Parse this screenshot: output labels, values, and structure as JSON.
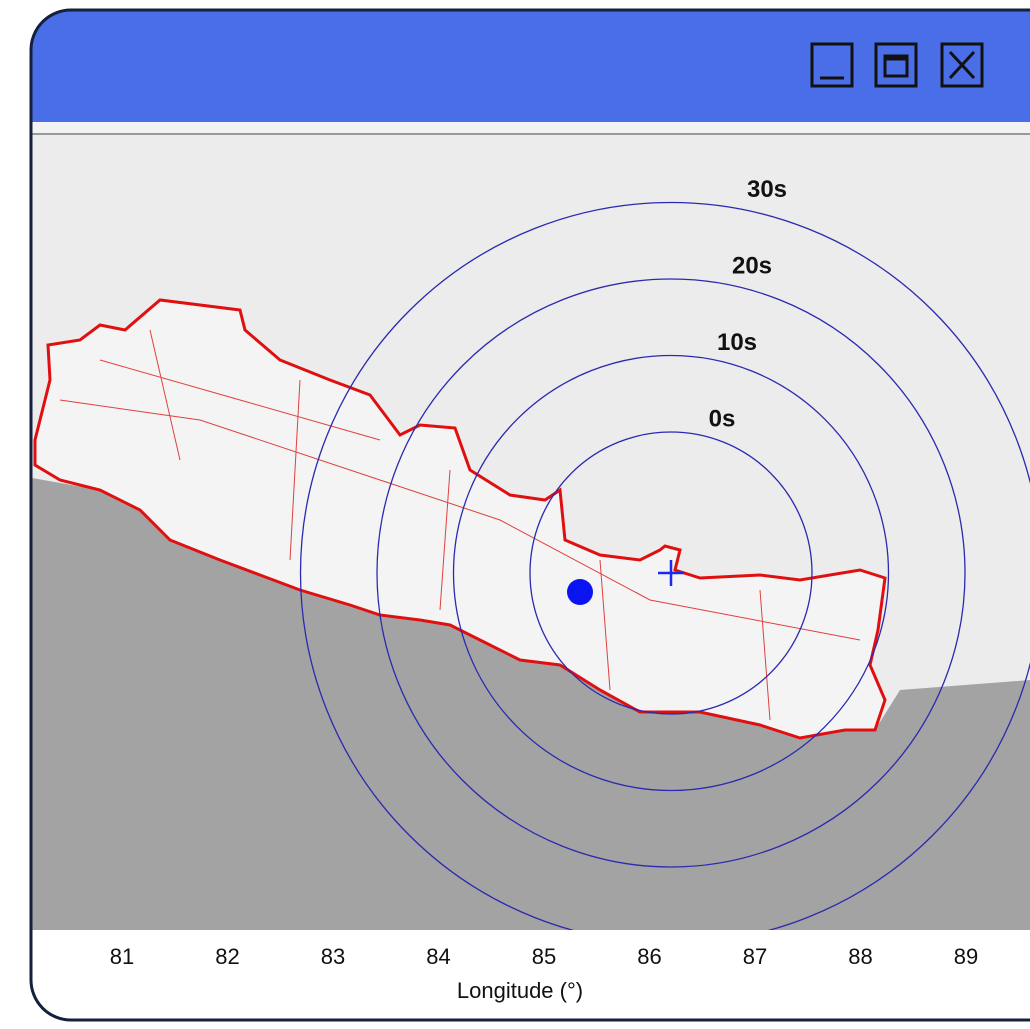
{
  "map": {
    "ring_labels": [
      "0s",
      "10s",
      "20s",
      "30s"
    ],
    "x_axis": {
      "ticks": [
        81,
        82,
        83,
        84,
        85,
        86,
        87,
        88,
        89
      ],
      "label": "Longitude (°)"
    }
  }
}
